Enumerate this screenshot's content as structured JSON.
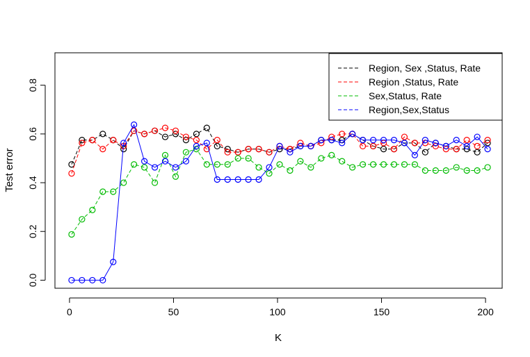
{
  "chart_data": {
    "type": "scatter",
    "xlabel": "K",
    "ylabel": "Test error",
    "xlim": [
      -7,
      208
    ],
    "ylim": [
      -0.033,
      0.933
    ],
    "x_ticks": [
      0,
      50,
      100,
      150,
      200
    ],
    "y_ticks": [
      0.0,
      0.2,
      0.4,
      0.6,
      0.8
    ],
    "x_tick_labels": [
      "0",
      "50",
      "100",
      "150",
      "200"
    ],
    "y_tick_labels": [
      "0.0",
      "0.2",
      "0.4",
      "0.6",
      "0.8"
    ],
    "grid": false,
    "legend_position": "top-right",
    "x": [
      1,
      6,
      11,
      16,
      21,
      26,
      31,
      36,
      41,
      46,
      51,
      56,
      61,
      66,
      71,
      76,
      81,
      86,
      91,
      96,
      101,
      106,
      111,
      116,
      121,
      126,
      131,
      136,
      141,
      146,
      151,
      156,
      161,
      166,
      171,
      176,
      181,
      186,
      191,
      196,
      201
    ],
    "series": [
      {
        "name": "Region, Sex ,Status, Rate",
        "color": "#000000",
        "values": [
          0.475,
          0.575,
          0.575,
          0.6,
          0.575,
          0.538,
          0.613,
          0.6,
          0.613,
          0.588,
          0.6,
          0.575,
          0.6,
          0.625,
          0.55,
          0.538,
          0.525,
          0.538,
          0.538,
          0.525,
          0.538,
          0.538,
          0.55,
          0.55,
          0.575,
          0.575,
          0.575,
          0.6,
          0.575,
          0.55,
          0.538,
          0.538,
          0.563,
          0.563,
          0.525,
          0.563,
          0.55,
          0.538,
          0.538,
          0.525,
          0.563
        ]
      },
      {
        "name": "Region ,Status, Rate",
        "color": "#ff0000",
        "values": [
          0.438,
          0.563,
          0.575,
          0.538,
          0.575,
          0.55,
          0.613,
          0.6,
          0.613,
          0.625,
          0.613,
          0.588,
          0.575,
          0.538,
          0.575,
          0.525,
          0.525,
          0.538,
          0.538,
          0.525,
          0.55,
          0.538,
          0.563,
          0.55,
          0.563,
          0.588,
          0.6,
          0.6,
          0.55,
          0.55,
          0.563,
          0.538,
          0.588,
          0.563,
          0.563,
          0.55,
          0.538,
          0.538,
          0.575,
          0.55,
          0.575
        ]
      },
      {
        "name": "Sex,Status, Rate",
        "color": "#00bb00",
        "values": [
          0.188,
          0.25,
          0.288,
          0.363,
          0.363,
          0.4,
          0.475,
          0.463,
          0.4,
          0.513,
          0.425,
          0.525,
          0.538,
          0.475,
          0.475,
          0.475,
          0.5,
          0.5,
          0.463,
          0.438,
          0.475,
          0.45,
          0.488,
          0.463,
          0.5,
          0.513,
          0.488,
          0.463,
          0.475,
          0.475,
          0.475,
          0.475,
          0.475,
          0.475,
          0.45,
          0.45,
          0.45,
          0.463,
          0.45,
          0.45,
          0.463
        ]
      },
      {
        "name": "Region,Sex,Status",
        "color": "#0000ff",
        "values": [
          0.0,
          0.0,
          0.0,
          0.0,
          0.075,
          0.563,
          0.638,
          0.488,
          0.463,
          0.488,
          0.463,
          0.488,
          0.55,
          0.563,
          0.413,
          0.413,
          0.413,
          0.413,
          0.413,
          0.463,
          0.55,
          0.525,
          0.55,
          0.55,
          0.575,
          0.575,
          0.563,
          0.6,
          0.575,
          0.575,
          0.575,
          0.575,
          0.563,
          0.513,
          0.575,
          0.563,
          0.55,
          0.575,
          0.55,
          0.588,
          0.538
        ]
      }
    ]
  }
}
